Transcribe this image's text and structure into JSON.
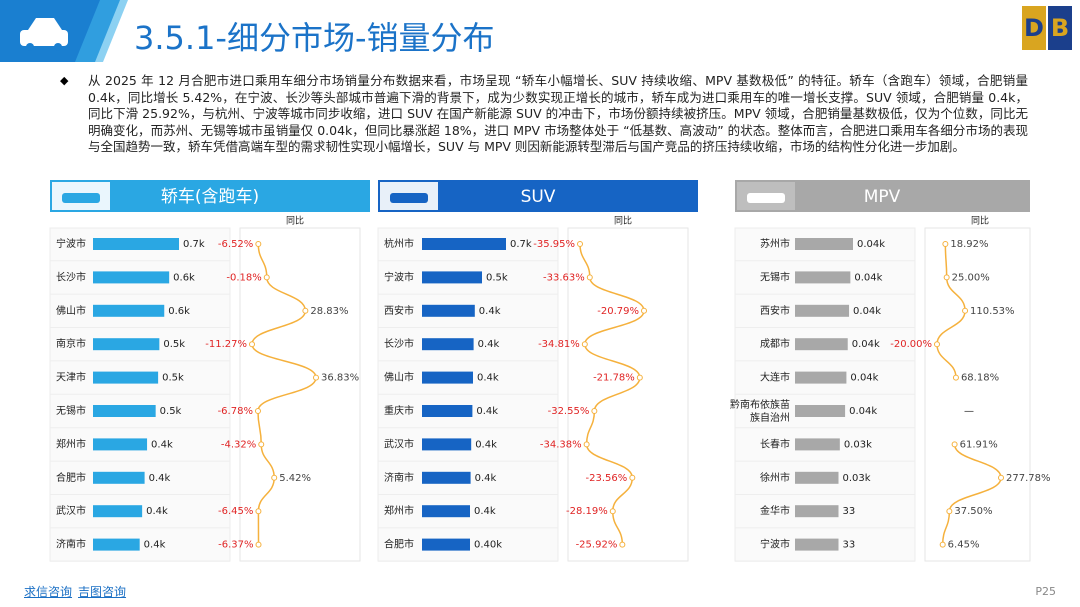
{
  "header": {
    "title": "3.5.1-细分市场-销量分布"
  },
  "summary": "从 2025 年 12 月合肥市进口乘用车细分市场销量分布数据来看，市场呈现 “轿车小幅增长、SUV 持续收缩、MPV 基数极低” 的特征。轿车（含跑车）领域，合肥销量 0.4k，同比增长 5.42%，在宁波、长沙等头部城市普遍下滑的背景下，成为少数实现正增长的城市，轿车成为进口乘用车的唯一增长支撑。SUV 领域，合肥销量 0.4k，同比下滑 25.92%，与杭州、宁波等城市同步收缩，进口 SUV 在国产新能源 SUV 的冲击下，市场份额持续被挤压。MPV 领域，合肥销量基数极低，仅为个位数，同比无明确变化，而苏州、无锡等城市虽销量仅 0.04k，但同比暴涨超 18%，进口 MPV 市场整体处于 “低基数、高波动” 的状态。整体而言，合肥进口乘用车各细分市场的表现与全国趋势一致，轿车凭借高端车型的需求韧性实现小幅增长，SUV 与 MPV 则因新能源转型滞后与国产竞品的挤压持续收缩，市场的结构性分化进一步加剧。",
  "chart_data": [
    {
      "type": "bar",
      "title": "轿车(含跑车)",
      "categories": [
        "宁波市",
        "长沙市",
        "佛山市",
        "南京市",
        "天津市",
        "无锡市",
        "郑州市",
        "合肥市",
        "武汉市",
        "济南市"
      ],
      "values": [
        700,
        620,
        580,
        540,
        530,
        510,
        440,
        420,
        400,
        380
      ],
      "value_labels": [
        "0.7k",
        "0.6k",
        "0.6k",
        "0.5k",
        "0.5k",
        "0.5k",
        "0.4k",
        "0.4k",
        "0.4k",
        "0.4k"
      ],
      "color": "#2aa7e3"
    },
    {
      "type": "line",
      "title": "同比",
      "values": [
        -6.52,
        -0.18,
        28.83,
        -11.27,
        36.83,
        -6.78,
        -4.32,
        5.42,
        -6.45,
        -6.37
      ],
      "value_labels": [
        "-6.52%",
        "-0.18%",
        "28.83%",
        "-11.27%",
        "36.83%",
        "-6.78%",
        "-4.32%",
        "5.42%",
        "-6.45%",
        "-6.37%"
      ],
      "color": "#f5b13d"
    },
    {
      "type": "bar",
      "title": "SUV",
      "categories": [
        "杭州市",
        "宁波市",
        "西安市",
        "长沙市",
        "佛山市",
        "重庆市",
        "武汉市",
        "济南市",
        "郑州市",
        "合肥市"
      ],
      "values": [
        700,
        500,
        440,
        430,
        425,
        420,
        410,
        405,
        400,
        400
      ],
      "value_labels": [
        "0.7k",
        "0.5k",
        "0.4k",
        "0.4k",
        "0.4k",
        "0.4k",
        "0.4k",
        "0.4k",
        "0.4k",
        "0.40k"
      ],
      "color": "#1664c4"
    },
    {
      "type": "line",
      "title": "同比",
      "values": [
        -35.95,
        -33.63,
        -20.79,
        -34.81,
        -21.78,
        -32.55,
        -34.38,
        -23.56,
        -28.19,
        -25.92
      ],
      "value_labels": [
        "-35.95%",
        "-33.63%",
        "-20.79%",
        "-34.81%",
        "-21.78%",
        "-32.55%",
        "-34.38%",
        "-23.56%",
        "-28.19%",
        "-25.92%"
      ],
      "color": "#f5b13d"
    },
    {
      "type": "bar",
      "title": "MPV",
      "categories": [
        "苏州市",
        "无锡市",
        "西安市",
        "成都市",
        "大连市",
        "黔南布依族苗族自治州",
        "长春市",
        "徐州市",
        "金华市",
        "宁波市"
      ],
      "values": [
        44,
        42,
        41,
        40,
        39,
        38,
        34,
        33,
        33,
        33
      ],
      "value_labels": [
        "0.04k",
        "0.04k",
        "0.04k",
        "0.04k",
        "0.04k",
        "0.04k",
        "0.03k",
        "0.03k",
        "33",
        "33"
      ],
      "color": "#a8a8a8"
    },
    {
      "type": "line",
      "title": "同比",
      "values": [
        18.92,
        25.0,
        110.53,
        -20.0,
        68.18,
        null,
        61.91,
        277.78,
        37.5,
        6.45
      ],
      "value_labels": [
        "18.92%",
        "25.00%",
        "110.53%",
        "-20.00%",
        "68.18%",
        "—",
        "61.91%",
        "277.78%",
        "37.50%",
        "6.45%"
      ],
      "color": "#f5b13d"
    }
  ],
  "footer": {
    "links": [
      "求信咨询",
      "吉图咨询"
    ],
    "page": "P25"
  }
}
